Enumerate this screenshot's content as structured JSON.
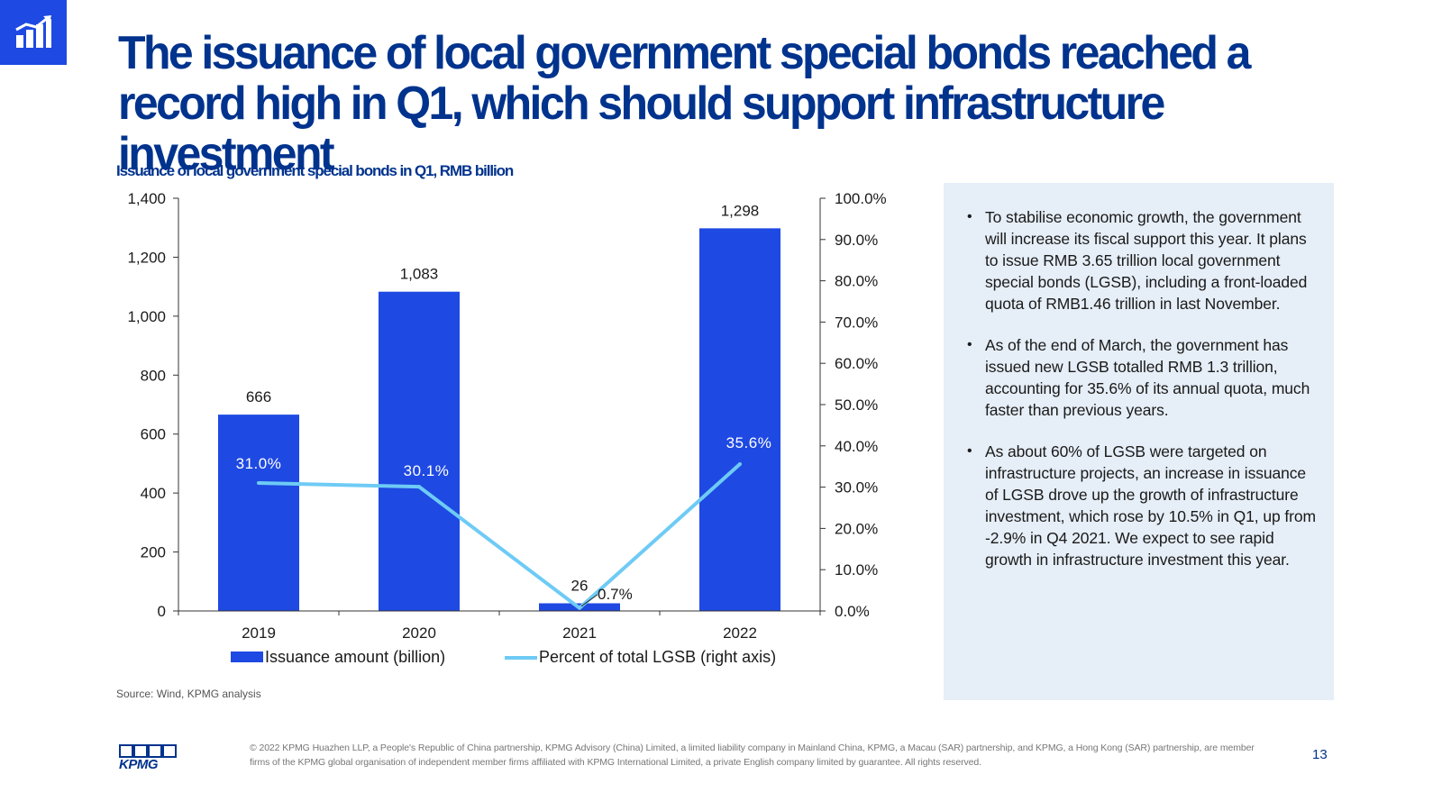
{
  "title": "The issuance of local government special bonds reached a record high in Q1, which should support infrastructure investment",
  "colors": {
    "brand": "#00338d",
    "bar": "#1e49e2",
    "line": "#6ecbf5",
    "panel": "#e6eef7"
  },
  "icons": {
    "corner": "bar-chart-growth-icon",
    "logo": "kpmg-logo-icon"
  },
  "chart_data": {
    "type": "bar",
    "title": "Issuance of local government special bonds in Q1, RMB billion",
    "categories": [
      "2019",
      "2020",
      "2021",
      "2022"
    ],
    "series": [
      {
        "name": "Issuance amount (billion)",
        "type": "bar",
        "axis": "left",
        "values": [
          666,
          1083,
          26,
          1298
        ],
        "labels": [
          "666",
          "1,083",
          "26",
          "1,298"
        ]
      },
      {
        "name": "Percent of total LGSB (right axis)",
        "type": "line",
        "axis": "right",
        "values": [
          31.0,
          30.1,
          0.7,
          35.6
        ],
        "labels": [
          "31.0%",
          "30.1%",
          "0.7%",
          "35.6%"
        ]
      }
    ],
    "y_left": {
      "min": 0,
      "max": 1400,
      "ticks": [
        "0",
        "200",
        "400",
        "600",
        "800",
        "1,000",
        "1,200",
        "1,400"
      ]
    },
    "y_right": {
      "min": 0,
      "max": 100,
      "ticks": [
        "0.0%",
        "10.0%",
        "20.0%",
        "30.0%",
        "40.0%",
        "50.0%",
        "60.0%",
        "70.0%",
        "80.0%",
        "90.0%",
        "100.0%"
      ]
    },
    "legend_position": "bottom",
    "grid": false
  },
  "source": "Source: Wind, KPMG analysis",
  "bullets": [
    "To stabilise economic growth, the government will increase its fiscal support this year. It plans to issue RMB 3.65 trillion local government special bonds (LGSB), including a front-loaded quota of RMB1.46 trillion in last November.",
    "As of the end of March, the government has issued new LGSB totalled RMB 1.3 trillion, accounting for 35.6% of its annual quota, much faster than previous years.",
    "As about 60% of LGSB were targeted on infrastructure projects, an increase in issuance of LGSB drove up the growth of infrastructure investment, which rose by 10.5% in Q1, up from -2.9% in Q4 2021. We expect to see rapid growth in infrastructure investment this year."
  ],
  "footer": "© 2022 KPMG Huazhen LLP, a People's Republic of China partnership, KPMG Advisory (China) Limited, a limited liability company in Mainland China, KPMG, a Macau (SAR) partnership, and KPMG, a Hong Kong (SAR) partnership, are member firms of the KPMG global organisation of independent member firms affiliated with KPMG International Limited, a private English company limited by guarantee. All rights reserved.",
  "logo_text": "KPMG",
  "page_number": "13"
}
